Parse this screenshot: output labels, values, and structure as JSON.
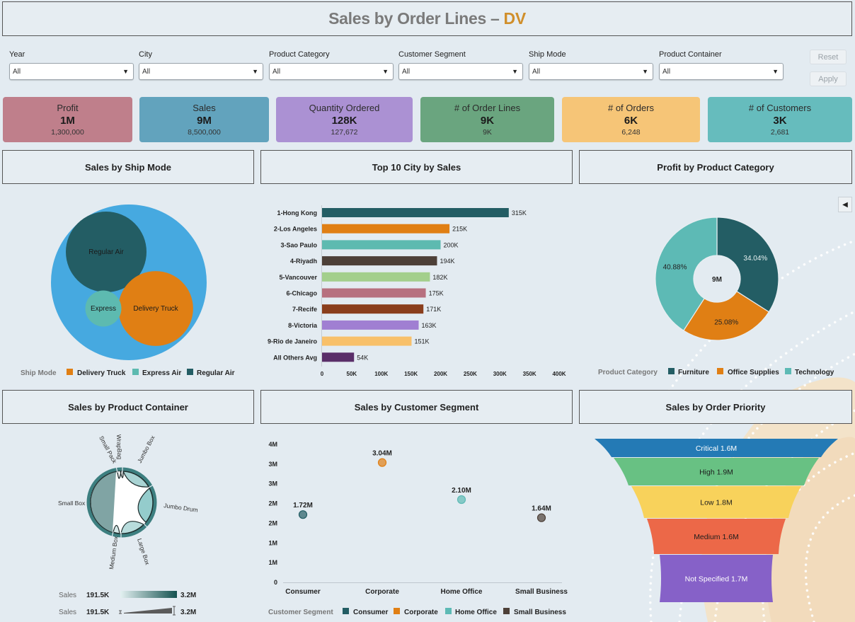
{
  "header": {
    "title_main": "Sales by Order Lines –",
    "title_accent": "DV",
    "accent_color": "#d08f2b"
  },
  "filters": [
    {
      "label": "Year",
      "value": "All"
    },
    {
      "label": "City",
      "value": "All"
    },
    {
      "label": "Product Category",
      "value": "All"
    },
    {
      "label": "Customer Segment",
      "value": "All"
    },
    {
      "label": "Ship Mode",
      "value": "All"
    },
    {
      "label": "Product Container",
      "value": "All"
    }
  ],
  "buttons": {
    "reset": "Reset",
    "apply": "Apply"
  },
  "kpis": [
    {
      "label": "Profit",
      "value": "1M",
      "sub": "1,300,000",
      "color": "#bf7f8b"
    },
    {
      "label": "Sales",
      "value": "9M",
      "sub": "8,500,000",
      "color": "#62a3bd"
    },
    {
      "label": "Quantity Ordered",
      "value": "128K",
      "sub": "127,672",
      "color": "#ab91d3"
    },
    {
      "label": "# of Order Lines",
      "value": "9K",
      "sub": "9K",
      "color": "#6aa57f"
    },
    {
      "label": "# of Orders",
      "value": "6K",
      "sub": "6,248",
      "color": "#f6c577"
    },
    {
      "label": "# of Customers",
      "value": "3K",
      "sub": "2,681",
      "color": "#66bcbd"
    }
  ],
  "panels": {
    "ship_mode": "Sales by Ship Mode",
    "top_city": "Top 10 City by Sales",
    "profit_category": "Profit by Product Category",
    "product_container": "Sales by Product Container",
    "customer_segment": "Sales by Customer Segment",
    "order_priority": "Sales by Order Priority"
  },
  "collapse_icon": "◀",
  "chart_data": [
    {
      "id": "ship_mode",
      "type": "bubble-pack",
      "title": "Sales by Ship Mode",
      "bubbles": [
        {
          "label": "Regular Air",
          "legend": "Regular Air",
          "color": "#235d64",
          "relative_size": 1.0
        },
        {
          "label": "Delivery Truck",
          "legend": "Delivery Truck",
          "color": "#e07f14",
          "relative_size": 0.86
        },
        {
          "label": "Express",
          "legend": "Express Air",
          "color": "#5dbab0",
          "relative_size": 0.2
        }
      ],
      "container_color": "#46a9e0",
      "legend_title": "Ship Mode",
      "legend": [
        {
          "label": "Delivery Truck",
          "color": "#e07f14"
        },
        {
          "label": "Express Air",
          "color": "#5dbab0"
        },
        {
          "label": "Regular Air",
          "color": "#235d64"
        }
      ]
    },
    {
      "id": "top_city",
      "type": "bar",
      "orientation": "horizontal",
      "title": "Top 10 City by Sales",
      "categories": [
        "1-Hong Kong",
        "2-Los Angeles",
        "3-Sao Paulo",
        "4-Riyadh",
        "5-Vancouver",
        "6-Chicago",
        "7-Recife",
        "8-Victoria",
        "9-Rio de Janeiro",
        "All Others Avg"
      ],
      "values": [
        315000,
        215000,
        200000,
        194000,
        182000,
        175000,
        171000,
        163000,
        151000,
        54000
      ],
      "data_labels": [
        "315K",
        "215K",
        "200K",
        "194K",
        "182K",
        "175K",
        "171K",
        "163K",
        "151K",
        "54K"
      ],
      "colors": [
        "#235d64",
        "#e07f14",
        "#5dbab0",
        "#4d4038",
        "#a3cf8c",
        "#b7707f",
        "#8a3e1c",
        "#a07fd2",
        "#f8c06a",
        "#5a2e69"
      ],
      "xlim": [
        0,
        400000
      ],
      "xticks": [
        "0",
        "50K",
        "100K",
        "150K",
        "200K",
        "250K",
        "300K",
        "350K",
        "400K"
      ],
      "xlabel": "",
      "ylabel": ""
    },
    {
      "id": "profit_category",
      "type": "pie",
      "donut": true,
      "title": "Profit by Product Category",
      "center_label": "9M",
      "slices": [
        {
          "label": "Furniture",
          "value": 34.04,
          "display": "34.04%",
          "color": "#235d64"
        },
        {
          "label": "Office Supplies",
          "value": 25.08,
          "display": "25.08%",
          "color": "#e07f14"
        },
        {
          "label": "Technology",
          "value": 40.88,
          "display": "40.88%",
          "color": "#5dbab5"
        }
      ],
      "legend_title": "Product Category",
      "legend": [
        {
          "label": "Furniture",
          "color": "#235d64"
        },
        {
          "label": "Office Supplies",
          "color": "#e07f14"
        },
        {
          "label": "Technology",
          "color": "#5dbab5"
        }
      ]
    },
    {
      "id": "product_container",
      "type": "chord",
      "title": "Sales by Product Container",
      "nodes": [
        "Small Pack",
        "WrapBag",
        "Jumbo Box",
        "Jumbo Drum",
        "Large Box",
        "Medium Box",
        "Small Box"
      ],
      "color_legend": {
        "label": "Sales",
        "min": "191.5K",
        "max": "3.2M"
      },
      "size_legend": {
        "label": "Sales",
        "min": "191.5K",
        "max": "3.2M"
      }
    },
    {
      "id": "customer_segment",
      "type": "scatter",
      "title": "Sales by Customer Segment",
      "categories": [
        "Consumer",
        "Corporate",
        "Home Office",
        "Small Business"
      ],
      "values": [
        1720000,
        3040000,
        2100000,
        1640000
      ],
      "data_labels": [
        "1.72M",
        "3.04M",
        "2.10M",
        "1.64M"
      ],
      "colors": [
        "#235d64",
        "#e07f14",
        "#5dbab5",
        "#4d4038"
      ],
      "yticks": [
        "0",
        "1M",
        "1M",
        "2M",
        "2M",
        "3M",
        "3M",
        "4M"
      ],
      "ylim": [
        0,
        3500000
      ],
      "legend_title": "Customer Segment",
      "legend": [
        {
          "label": "Consumer",
          "color": "#235d64"
        },
        {
          "label": "Corporate",
          "color": "#e07f14"
        },
        {
          "label": "Home Office",
          "color": "#5dbab5"
        },
        {
          "label": "Small Business",
          "color": "#4d4038"
        }
      ]
    },
    {
      "id": "order_priority",
      "type": "funnel",
      "title": "Sales by Order Priority",
      "stages": [
        {
          "label": "Critical 1.6M",
          "value": 1.6,
          "color": "#247ab5",
          "text_color": "#ffffff"
        },
        {
          "label": "High 1.9M",
          "value": 1.9,
          "color": "#68c183",
          "text_color": "#1d1d1d"
        },
        {
          "label": "Low 1.8M",
          "value": 1.8,
          "color": "#f8d25b",
          "text_color": "#1d1d1d"
        },
        {
          "label": "Medium 1.6M",
          "value": 1.6,
          "color": "#ec6848",
          "text_color": "#1d1d1d"
        },
        {
          "label": "Not Specified 1.7M",
          "value": 1.7,
          "color": "#8661c8",
          "text_color": "#ffffff"
        }
      ]
    }
  ]
}
